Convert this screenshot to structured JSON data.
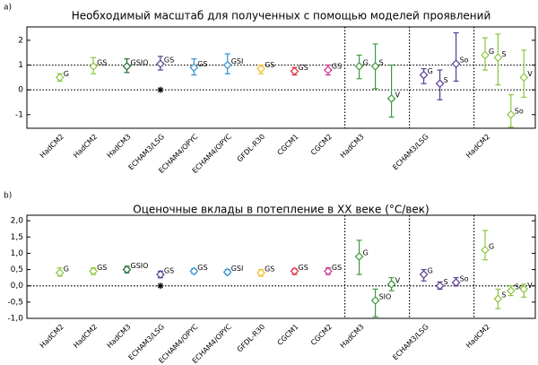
{
  "chart_data": [
    {
      "type": "errorbar",
      "label": "a)",
      "title": "Необходимый масштаб для полученных с помощью моделей проявлений",
      "ylim": [
        -1.55,
        2.54
      ],
      "yticks": [
        -1,
        0,
        1,
        2
      ],
      "reference_lines": [
        0,
        1
      ],
      "groups": [
        {
          "name": "HadCM2",
          "points": [
            {
              "label": "G",
              "color": "#8cc63f",
              "value": 0.5,
              "low": 0.35,
              "high": 0.65
            }
          ]
        },
        {
          "name": "HadCM2",
          "points": [
            {
              "label": "GS",
              "color": "#8cc63f",
              "value": 0.95,
              "low": 0.65,
              "high": 1.3
            }
          ]
        },
        {
          "name": "HadCM3",
          "points": [
            {
              "label": "GSIO",
              "color": "#1e6e32",
              "value": 0.95,
              "low": 0.7,
              "high": 1.25
            }
          ]
        },
        {
          "name": "ECHAM3/LSG",
          "star": 0,
          "points": [
            {
              "label": "GS",
              "color": "#5a3c96",
              "value": 1.05,
              "low": 0.8,
              "high": 1.35
            }
          ]
        },
        {
          "name": "ECHAM4/OPYC",
          "points": [
            {
              "label": "GS",
              "color": "#2f8fd0",
              "value": 0.9,
              "low": 0.6,
              "high": 1.25
            }
          ]
        },
        {
          "name": "ECHAM4/OPYC",
          "points": [
            {
              "label": "GSI",
              "color": "#2f8fd0",
              "value": 1.0,
              "low": 0.65,
              "high": 1.45
            }
          ]
        },
        {
          "name": "GFDL-R30",
          "points": [
            {
              "label": "GS",
              "color": "#f0c020",
              "value": 0.85,
              "low": 0.65,
              "high": 1.0
            }
          ]
        },
        {
          "name": "CGCM1",
          "points": [
            {
              "label": "GS",
              "color": "#dc2a3c",
              "value": 0.75,
              "low": 0.6,
              "high": 0.9
            }
          ]
        },
        {
          "name": "CGCM2",
          "points": [
            {
              "label": "GS",
              "color": "#d02f8a",
              "value": 0.8,
              "low": 0.6,
              "high": 1.0
            }
          ]
        },
        {
          "name": "HadCM3",
          "points": [
            {
              "label": "G",
              "color": "#3c9b3c",
              "value": 0.95,
              "low": 0.45,
              "high": 1.4
            },
            {
              "label": "S",
              "color": "#3c9b3c",
              "value": 0.95,
              "low": 0.05,
              "high": 1.85
            },
            {
              "label": "V",
              "color": "#3c9b3c",
              "value": -0.35,
              "low": -1.1,
              "high": 1.0
            }
          ]
        },
        {
          "name": "ECHAM3/LSG",
          "points": [
            {
              "label": "G",
              "color": "#5a3c96",
              "value": 0.6,
              "low": 0.25,
              "high": 0.85
            },
            {
              "label": "S",
              "color": "#5a3c96",
              "value": 0.25,
              "low": -0.4,
              "high": 0.8
            },
            {
              "label": "So",
              "color": "#5a3c96",
              "value": 1.05,
              "low": 0.35,
              "high": 2.3
            }
          ]
        },
        {
          "name": "HadCM2",
          "points": [
            {
              "label": "G",
              "color": "#8cc63f",
              "value": 1.4,
              "low": 0.8,
              "high": 2.1
            },
            {
              "label": "S",
              "color": "#8cc63f",
              "value": 1.3,
              "low": 0.2,
              "high": 2.25
            },
            {
              "label": "So",
              "color": "#8cc63f",
              "value": -1.0,
              "low": -1.5,
              "high": -0.2
            },
            {
              "label": "V",
              "color": "#8cc63f",
              "value": 0.5,
              "low": -0.3,
              "high": 1.6
            }
          ]
        }
      ]
    },
    {
      "type": "errorbar",
      "label": "b)",
      "title": "Оценочные вклады в потепление в XX веке (°C/век)",
      "ylim": [
        -1.0,
        2.17
      ],
      "yticks": [
        {
          "value": -1.0,
          "label": "-1,0"
        },
        {
          "value": -0.5,
          "label": "-0,5"
        },
        {
          "value": 0.0,
          "label": "0,0"
        },
        {
          "value": 0.5,
          "label": "0,5"
        },
        {
          "value": 1.0,
          "label": "1,0"
        },
        {
          "value": 1.5,
          "label": "1,5"
        },
        {
          "value": 2.0,
          "label": "2,0"
        }
      ],
      "reference_lines": [
        0
      ],
      "groups": [
        {
          "name": "HadCM2",
          "points": [
            {
              "label": "G",
              "color": "#8cc63f",
              "value": 0.4,
              "low": 0.3,
              "high": 0.55
            }
          ]
        },
        {
          "name": "HadCM2",
          "points": [
            {
              "label": "GS",
              "color": "#8cc63f",
              "value": 0.45,
              "low": 0.35,
              "high": 0.55
            }
          ]
        },
        {
          "name": "HadCM3",
          "points": [
            {
              "label": "GSIO",
              "color": "#1e6e32",
              "value": 0.5,
              "low": 0.4,
              "high": 0.6
            }
          ]
        },
        {
          "name": "ECHAM3/LSG",
          "star": 0,
          "points": [
            {
              "label": "GS",
              "color": "#5a3c96",
              "value": 0.35,
              "low": 0.25,
              "high": 0.45
            }
          ]
        },
        {
          "name": "ECHAM4/OPYC",
          "points": [
            {
              "label": "GS",
              "color": "#2f8fd0",
              "value": 0.45,
              "low": 0.38,
              "high": 0.52
            }
          ]
        },
        {
          "name": "ECHAM4/OPYC",
          "points": [
            {
              "label": "GSI",
              "color": "#2f8fd0",
              "value": 0.42,
              "low": 0.35,
              "high": 0.5
            }
          ]
        },
        {
          "name": "GFDL-R30",
          "points": [
            {
              "label": "GS",
              "color": "#f0c020",
              "value": 0.4,
              "low": 0.3,
              "high": 0.5
            }
          ]
        },
        {
          "name": "CGCM1",
          "points": [
            {
              "label": "GS",
              "color": "#dc2a3c",
              "value": 0.45,
              "low": 0.35,
              "high": 0.52
            }
          ]
        },
        {
          "name": "CGCM2",
          "points": [
            {
              "label": "GS",
              "color": "#d02f8a",
              "value": 0.45,
              "low": 0.35,
              "high": 0.55
            }
          ]
        },
        {
          "name": "HadCM3",
          "points": [
            {
              "label": "G",
              "color": "#3c9b3c",
              "value": 0.9,
              "low": 0.35,
              "high": 1.4
            },
            {
              "label": "SIO",
              "color": "#3c9b3c",
              "value": -0.45,
              "low": -0.95,
              "high": -0.1
            },
            {
              "label": "V",
              "color": "#3c9b3c",
              "value": 0.05,
              "low": -0.15,
              "high": 0.25
            }
          ]
        },
        {
          "name": "ECHAM3/LSG",
          "points": [
            {
              "label": "G",
              "color": "#5a3c96",
              "value": 0.35,
              "low": 0.15,
              "high": 0.5
            },
            {
              "label": "S",
              "color": "#5a3c96",
              "value": 0.0,
              "low": -0.1,
              "high": 0.12
            },
            {
              "label": "So",
              "color": "#5a3c96",
              "value": 0.1,
              "low": 0.0,
              "high": 0.25
            }
          ]
        },
        {
          "name": "HadCM2",
          "points": [
            {
              "label": "G",
              "color": "#8cc63f",
              "value": 1.1,
              "low": 0.8,
              "high": 1.7
            },
            {
              "label": "S",
              "color": "#8cc63f",
              "value": -0.4,
              "low": -0.7,
              "high": -0.1
            },
            {
              "label": "So",
              "color": "#8cc63f",
              "value": -0.15,
              "low": -0.3,
              "high": 0.0
            },
            {
              "label": "V",
              "color": "#8cc63f",
              "value": -0.1,
              "low": -0.35,
              "high": 0.05
            }
          ]
        }
      ]
    }
  ]
}
